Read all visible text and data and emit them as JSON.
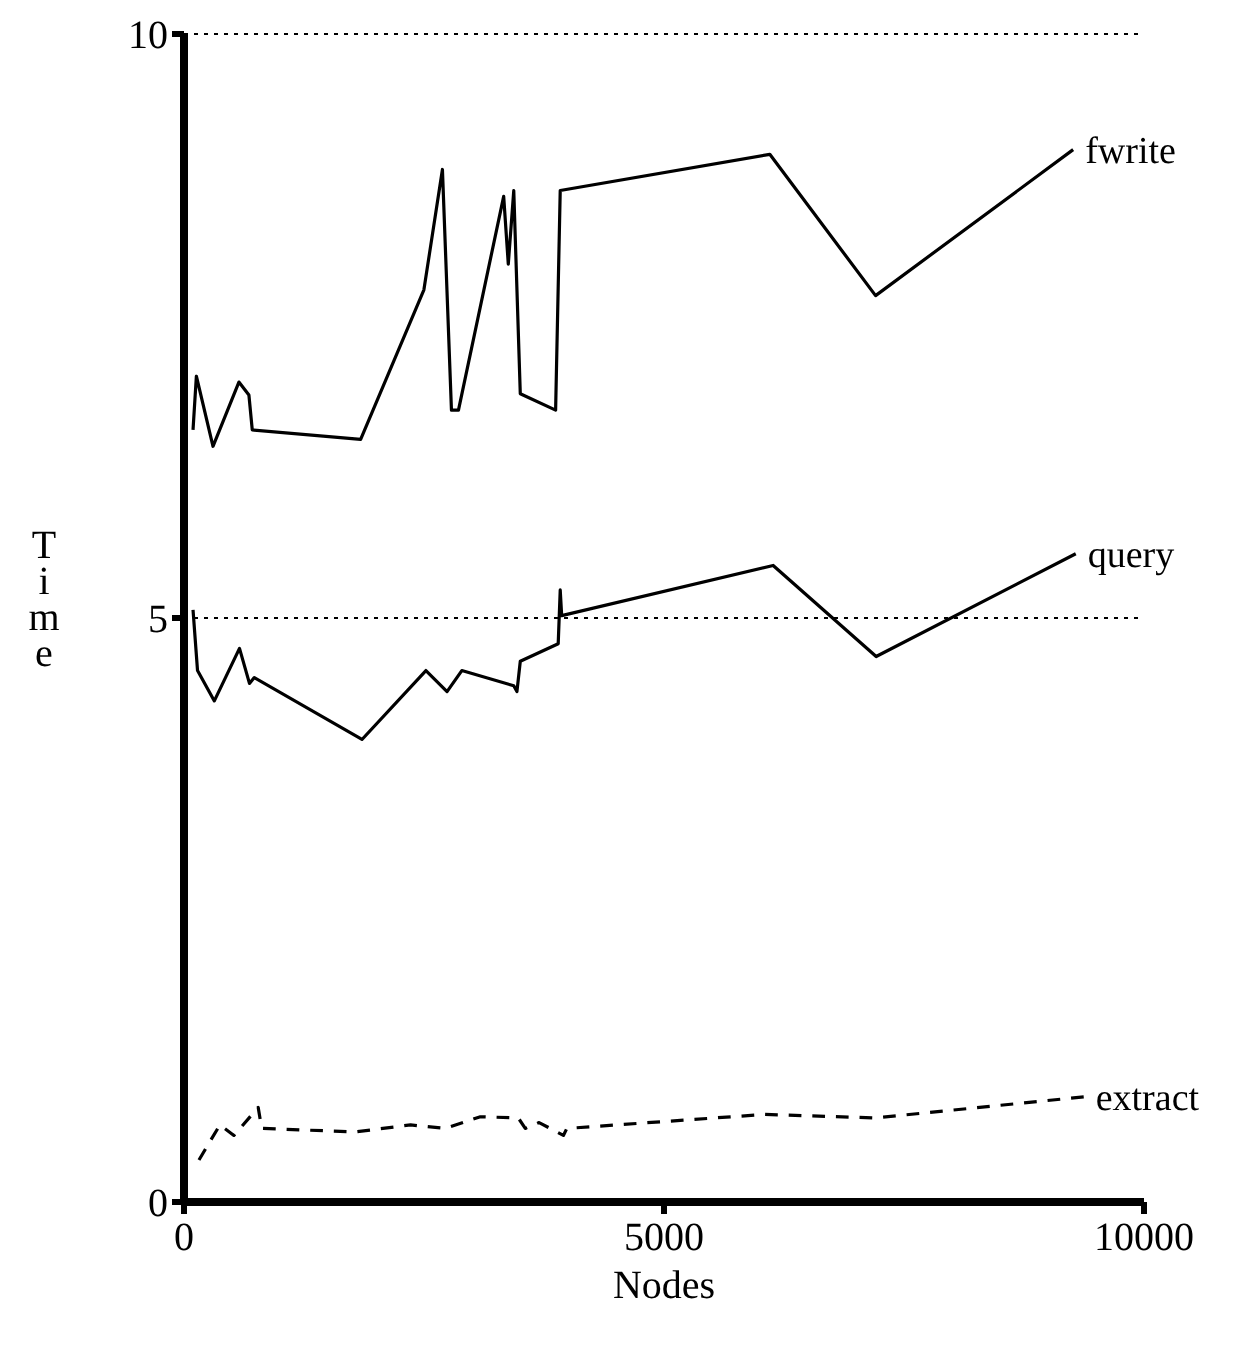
{
  "chart_data": {
    "type": "line",
    "xlabel": "Nodes",
    "ylabel": "Time",
    "xlim": [
      0,
      10000
    ],
    "ylim": [
      0,
      10
    ],
    "xticks": [
      0,
      5000,
      10000
    ],
    "yticks": [
      0,
      5,
      10
    ],
    "grid": "y",
    "series": [
      {
        "name": "fwrite",
        "color": "#000000",
        "line_style": "solid",
        "x": [
          94,
          129,
          302,
          572,
          676,
          711,
          1840,
          2499,
          2692,
          2786,
          2859,
          3330,
          3378,
          3435,
          3503,
          3871,
          3919,
          6102,
          7204,
          9262
        ],
        "values": [
          6.61,
          7.07,
          6.47,
          7.02,
          6.91,
          6.61,
          6.53,
          7.81,
          8.84,
          6.78,
          6.78,
          8.61,
          8.03,
          8.66,
          6.92,
          6.78,
          8.66,
          8.97,
          7.76,
          9.01
        ]
      },
      {
        "name": "query",
        "color": "#000000",
        "line_style": "solid",
        "x": [
          94,
          141,
          316,
          578,
          682,
          732,
          1854,
          2520,
          2740,
          2894,
          3435,
          3468,
          3503,
          3898,
          3919,
          3934,
          6137,
          7210,
          9289
        ],
        "values": [
          5.07,
          4.55,
          4.29,
          4.74,
          4.44,
          4.49,
          3.96,
          4.55,
          4.37,
          4.55,
          4.42,
          4.37,
          4.63,
          4.78,
          5.24,
          5.02,
          5.45,
          4.67,
          5.55
        ]
      },
      {
        "name": "extract",
        "color": "#000000",
        "line_style": "dashed",
        "x": [
          156,
          374,
          520,
          773,
          809,
          1784,
          2360,
          2723,
          3087,
          3482,
          3555,
          3699,
          3952,
          3988,
          6048,
          7204,
          9372
        ],
        "values": [
          0.36,
          0.66,
          0.57,
          0.81,
          0.63,
          0.6,
          0.66,
          0.63,
          0.73,
          0.72,
          0.63,
          0.68,
          0.57,
          0.63,
          0.75,
          0.72,
          0.9
        ]
      }
    ]
  }
}
